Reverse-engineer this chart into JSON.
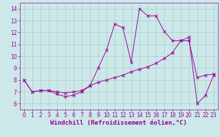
{
  "line1_x": [
    0,
    1,
    2,
    3,
    4,
    5,
    6,
    7,
    8,
    9,
    10,
    11,
    12,
    13,
    14,
    15,
    16,
    17,
    18,
    19,
    20,
    21,
    22,
    23
  ],
  "line1_y": [
    8.0,
    7.0,
    7.1,
    7.1,
    6.8,
    6.6,
    6.7,
    7.0,
    7.5,
    9.0,
    10.5,
    12.7,
    12.4,
    9.5,
    14.0,
    13.4,
    13.4,
    12.1,
    11.3,
    11.3,
    11.6,
    6.0,
    6.7,
    8.4
  ],
  "line2_x": [
    0,
    1,
    2,
    3,
    4,
    5,
    6,
    7,
    8,
    9,
    10,
    11,
    12,
    13,
    14,
    15,
    16,
    17,
    18,
    19,
    20,
    21,
    22,
    23
  ],
  "line2_y": [
    8.0,
    7.0,
    7.1,
    7.1,
    7.0,
    6.9,
    7.0,
    7.1,
    7.5,
    7.8,
    8.0,
    8.2,
    8.4,
    8.7,
    8.9,
    9.1,
    9.4,
    9.8,
    10.3,
    11.3,
    11.3,
    8.2,
    8.4,
    8.5
  ],
  "line_color": "#990099",
  "bg_color": "#cce8e8",
  "grid_color": "#aacccc",
  "axis_color": "#990099",
  "xlabel": "Windchill (Refroidissement éolien,°C)",
  "xlim": [
    -0.5,
    23.5
  ],
  "ylim": [
    5.5,
    14.5
  ],
  "xticks": [
    0,
    1,
    2,
    3,
    4,
    5,
    6,
    7,
    8,
    9,
    10,
    11,
    12,
    13,
    14,
    15,
    16,
    17,
    18,
    19,
    20,
    21,
    22,
    23
  ],
  "yticks": [
    6,
    7,
    8,
    9,
    10,
    11,
    12,
    13,
    14
  ],
  "tick_fontsize": 5.5,
  "xlabel_fontsize": 6.5
}
